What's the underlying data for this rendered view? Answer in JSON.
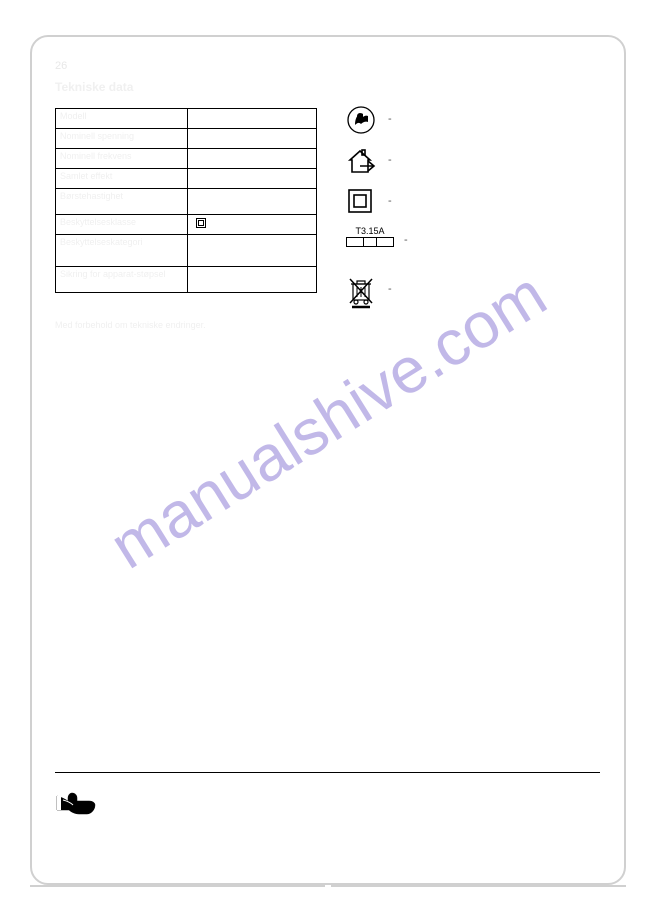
{
  "page_number": "26",
  "heading": "Tekniske data",
  "table": {
    "rows": [
      {
        "label": "Modell",
        "value": "",
        "height": "normal"
      },
      {
        "label": "Nominell spenning",
        "value": "",
        "height": "normal"
      },
      {
        "label": "Nominell frekvens",
        "value": "",
        "height": "normal"
      },
      {
        "label": "Samlet effekt",
        "value": "",
        "height": "normal"
      },
      {
        "label": "Børstehastighet",
        "value": "",
        "height": "tall"
      },
      {
        "label": "Beskyttelsesklasse",
        "value": "has_class2",
        "height": "normal"
      },
      {
        "label": "Beskyttelseskategori",
        "value": "",
        "height": "taller"
      },
      {
        "label": "Sikring for apparat-støpsel",
        "value": "",
        "height": "tall"
      }
    ]
  },
  "symbols": [
    {
      "name": "read-manual-icon",
      "type": "read",
      "desc": "-"
    },
    {
      "name": "indoor-use-icon",
      "type": "house",
      "desc": "-"
    },
    {
      "name": "class2-icon",
      "type": "doubleSquare",
      "desc": "-"
    },
    {
      "name": "fuse-icon",
      "type": "fuse",
      "fuseText": "T3.15A",
      "desc": "-"
    },
    {
      "name": "weee-icon",
      "type": "wheelie",
      "desc": "-"
    }
  ],
  "notes": {
    "pos1": "Med forbehold om tekniske endringer."
  },
  "colors": {
    "page_bg": "#ffffff",
    "frame_border": "#d0d0d0",
    "table_border": "#000000",
    "watermark": "#907fd6",
    "faded_text": "#f0f0f0"
  }
}
